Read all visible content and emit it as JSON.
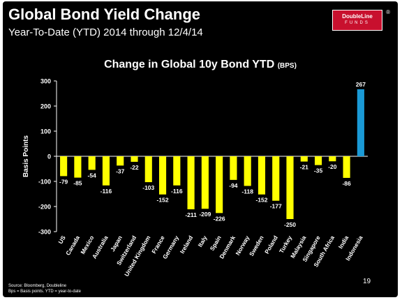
{
  "slide": {
    "title": "Global Bond Yield Change",
    "subtitle": "Year-To-Date (YTD) 2014 through 12/4/14",
    "logo_line1": "DoubleLine",
    "logo_line2": "FUNDS",
    "logo_mark": "®",
    "source": "Source: Bloomberg, Doubleline",
    "note": "Bps = Basis points. YTD = year-to-date",
    "page_number": "19"
  },
  "chart_data": {
    "type": "bar",
    "title": "Change in Global 10y Bond YTD",
    "title_unit": "(BPS)",
    "ylabel": "Basis Points",
    "xlabel": "",
    "ylim": [
      -300,
      300
    ],
    "yticks": [
      -300,
      -200,
      -100,
      0,
      100,
      200,
      300
    ],
    "grid": false,
    "categories": [
      "US",
      "Canada",
      "Mexico",
      "Australia",
      "Japan",
      "Switzerland",
      "United Kingdom",
      "France",
      "Germany",
      "Ireland",
      "Italy",
      "Spain",
      "Denmark",
      "Norway",
      "Sweden",
      "Poland",
      "Turkey",
      "Malaysia",
      "Singapore",
      "South Africa",
      "India",
      "Indonesia"
    ],
    "values": [
      -79,
      -85,
      -54,
      -116,
      -37,
      -22,
      -103,
      -152,
      -116,
      -211,
      -209,
      -226,
      -94,
      -118,
      -152,
      -177,
      -250,
      -21,
      -35,
      -20,
      -86,
      267
    ],
    "colors": {
      "negative": "#ffff00",
      "positive": "#1a9ad6",
      "axis": "#ffffff",
      "text": "#ffffff"
    }
  }
}
